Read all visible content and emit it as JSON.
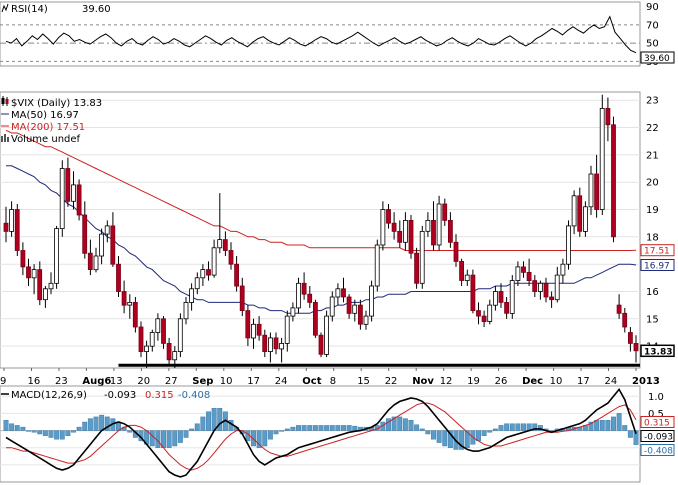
{
  "chart_data": [
    {
      "panel": "rsi",
      "type": "line",
      "title": "RSI(14)",
      "last_value_label": "39.60",
      "last_value": 39.6,
      "ylim": [
        25,
        95
      ],
      "y_ticks": [
        90,
        70,
        50,
        30
      ],
      "reference_lines": [
        70,
        50,
        30
      ],
      "values": [
        52,
        50,
        55,
        47,
        52,
        58,
        54,
        60,
        55,
        49,
        56,
        61,
        58,
        52,
        54,
        51,
        49,
        53,
        57,
        60,
        56,
        50,
        47,
        52,
        55,
        50,
        48,
        53,
        57,
        54,
        49,
        51,
        55,
        52,
        48,
        46,
        50,
        54,
        58,
        55,
        51,
        48,
        53,
        56,
        52,
        49,
        46,
        51,
        55,
        57,
        53,
        50,
        48,
        52,
        56,
        53,
        49,
        47,
        50,
        54,
        57,
        55,
        51,
        49,
        52,
        55,
        58,
        62,
        58,
        54,
        50,
        47,
        50,
        53,
        56,
        52,
        49,
        51,
        54,
        57,
        53,
        50,
        47,
        49,
        53,
        56,
        52,
        49,
        47,
        50,
        55,
        52,
        49,
        48,
        51,
        55,
        58,
        54,
        50,
        47,
        50,
        55,
        58,
        62,
        66,
        63,
        59,
        64,
        68,
        64,
        61,
        66,
        70,
        66,
        68,
        79,
        62,
        55,
        48,
        42,
        39.6
      ],
      "color": "#000000"
    },
    {
      "panel": "price",
      "type": "candlestick",
      "title": "$VIX (Daily) 13.83",
      "legend": [
        {
          "label": "$VIX (Daily) 13.83",
          "color": "#000000",
          "icon": "candle-icon"
        },
        {
          "label": "MA(50) 16.97",
          "color": "#1f2a7a"
        },
        {
          "label": "MA(200) 17.51",
          "color": "#cc2222"
        },
        {
          "label": "Volume undef",
          "color": "#555555",
          "icon": "volume-bars-icon"
        }
      ],
      "ylim": [
        13.2,
        23.3
      ],
      "y_ticks": [
        23,
        22,
        21,
        20,
        19,
        18,
        17,
        16,
        15,
        14
      ],
      "x_ticks": [
        "9",
        "16",
        "23",
        "Aug6",
        "13",
        "20",
        "27",
        "Sep",
        "10",
        "17",
        "24",
        "Oct",
        "8",
        "15",
        "22",
        "Nov",
        "12",
        "19",
        "26",
        "Dec",
        "10",
        "17",
        "24",
        "2013"
      ],
      "bold_x_ticks": [
        "Aug",
        "Sep",
        "Oct",
        "Nov",
        "Dec",
        "2013"
      ],
      "support_line": 13.3,
      "last_price": 13.83,
      "ma50_last": 16.97,
      "ma200_last": 17.51,
      "candles": [
        [
          18.5,
          19.1,
          17.8,
          18.2
        ],
        [
          18.2,
          19.3,
          18.0,
          19.0
        ],
        [
          19.0,
          19.2,
          17.3,
          17.5
        ],
        [
          17.5,
          17.8,
          16.6,
          16.9
        ],
        [
          16.9,
          17.2,
          16.2,
          16.5
        ],
        [
          16.5,
          17.0,
          15.9,
          16.8
        ],
        [
          16.8,
          17.1,
          15.5,
          15.7
        ],
        [
          15.7,
          16.2,
          15.4,
          16.1
        ],
        [
          16.1,
          16.7,
          15.9,
          16.3
        ],
        [
          16.3,
          18.4,
          16.1,
          18.3
        ],
        [
          18.3,
          20.8,
          18.0,
          20.5
        ],
        [
          20.5,
          20.9,
          19.1,
          19.3
        ],
        [
          19.3,
          20.4,
          19.0,
          19.9
        ],
        [
          19.9,
          20.1,
          18.6,
          18.8
        ],
        [
          18.8,
          19.3,
          17.2,
          17.4
        ],
        [
          17.4,
          17.9,
          16.6,
          16.8
        ],
        [
          16.8,
          17.6,
          16.7,
          17.3
        ],
        [
          17.3,
          18.3,
          17.0,
          18.1
        ],
        [
          18.1,
          18.6,
          17.8,
          18.4
        ],
        [
          18.4,
          18.9,
          16.9,
          17.0
        ],
        [
          17.0,
          17.3,
          15.8,
          16.0
        ],
        [
          16.0,
          16.4,
          15.2,
          15.5
        ],
        [
          15.5,
          15.9,
          15.0,
          15.6
        ],
        [
          15.6,
          15.8,
          14.5,
          14.7
        ],
        [
          14.7,
          14.9,
          13.6,
          13.8
        ],
        [
          13.8,
          14.2,
          13.2,
          14.0
        ],
        [
          14.0,
          14.6,
          13.8,
          14.5
        ],
        [
          14.5,
          15.2,
          14.2,
          15.0
        ],
        [
          15.0,
          15.1,
          13.9,
          14.1
        ],
        [
          14.1,
          14.3,
          13.3,
          13.5
        ],
        [
          13.5,
          14.0,
          13.2,
          13.8
        ],
        [
          13.8,
          15.2,
          13.6,
          15.0
        ],
        [
          15.0,
          15.8,
          14.8,
          15.6
        ],
        [
          15.6,
          16.3,
          15.3,
          16.1
        ],
        [
          16.1,
          16.7,
          15.9,
          16.5
        ],
        [
          16.5,
          17.0,
          16.2,
          16.8
        ],
        [
          16.8,
          17.1,
          16.4,
          16.6
        ],
        [
          16.6,
          17.9,
          16.5,
          17.6
        ],
        [
          17.6,
          19.6,
          17.4,
          17.9
        ],
        [
          17.9,
          18.2,
          17.3,
          17.5
        ],
        [
          17.5,
          17.8,
          16.8,
          17.0
        ],
        [
          17.0,
          17.3,
          16.0,
          16.2
        ],
        [
          16.2,
          16.5,
          15.1,
          15.3
        ],
        [
          15.3,
          15.5,
          14.0,
          14.3
        ],
        [
          14.3,
          15.0,
          13.9,
          14.8
        ],
        [
          14.8,
          15.1,
          14.2,
          14.4
        ],
        [
          14.4,
          14.6,
          13.6,
          13.8
        ],
        [
          13.8,
          14.5,
          13.4,
          14.3
        ],
        [
          14.3,
          14.5,
          13.7,
          13.9
        ],
        [
          13.9,
          14.3,
          13.4,
          14.1
        ],
        [
          14.1,
          15.3,
          13.8,
          15.1
        ],
        [
          15.1,
          15.6,
          14.9,
          15.4
        ],
        [
          15.4,
          16.5,
          15.2,
          16.3
        ],
        [
          16.3,
          16.7,
          15.7,
          15.9
        ],
        [
          15.9,
          16.2,
          15.4,
          15.6
        ],
        [
          15.6,
          15.7,
          14.3,
          14.4
        ],
        [
          14.4,
          14.5,
          13.6,
          13.7
        ],
        [
          13.7,
          15.3,
          13.6,
          15.1
        ],
        [
          15.1,
          16.0,
          14.9,
          15.8
        ],
        [
          15.8,
          16.3,
          15.5,
          16.1
        ],
        [
          16.1,
          16.5,
          15.6,
          15.8
        ],
        [
          15.8,
          15.9,
          15.0,
          15.2
        ],
        [
          15.2,
          15.7,
          14.9,
          15.5
        ],
        [
          15.5,
          15.7,
          14.6,
          14.8
        ],
        [
          14.8,
          15.3,
          14.6,
          15.1
        ],
        [
          15.1,
          16.4,
          14.9,
          16.2
        ],
        [
          16.2,
          17.9,
          16.0,
          17.7
        ],
        [
          17.7,
          19.3,
          17.5,
          19.0
        ],
        [
          19.0,
          19.2,
          18.3,
          18.5
        ],
        [
          18.5,
          18.9,
          17.9,
          18.2
        ],
        [
          18.2,
          18.6,
          17.6,
          17.8
        ],
        [
          17.8,
          18.9,
          17.5,
          18.6
        ],
        [
          18.6,
          18.8,
          17.2,
          17.4
        ],
        [
          17.4,
          17.6,
          16.1,
          16.3
        ],
        [
          16.3,
          18.4,
          16.1,
          18.2
        ],
        [
          18.2,
          18.9,
          18.0,
          18.6
        ],
        [
          18.6,
          19.3,
          17.5,
          17.7
        ],
        [
          17.7,
          19.5,
          17.5,
          19.2
        ],
        [
          19.2,
          19.4,
          18.4,
          18.6
        ],
        [
          18.6,
          18.9,
          17.6,
          17.8
        ],
        [
          17.8,
          18.1,
          16.9,
          17.1
        ],
        [
          17.1,
          17.2,
          16.2,
          16.4
        ],
        [
          16.4,
          16.8,
          16.2,
          16.6
        ],
        [
          16.6,
          16.8,
          15.2,
          15.3
        ],
        [
          15.3,
          15.6,
          14.8,
          15.1
        ],
        [
          15.1,
          15.3,
          14.7,
          14.9
        ],
        [
          14.9,
          15.7,
          14.8,
          15.5
        ],
        [
          15.5,
          16.2,
          15.3,
          16.0
        ],
        [
          16.0,
          16.3,
          15.4,
          15.6
        ],
        [
          15.6,
          15.8,
          15.0,
          15.2
        ],
        [
          15.2,
          16.6,
          15.0,
          16.4
        ],
        [
          16.4,
          17.1,
          16.2,
          16.9
        ],
        [
          16.9,
          17.1,
          16.5,
          16.7
        ],
        [
          16.7,
          17.2,
          16.2,
          16.4
        ],
        [
          16.4,
          16.6,
          15.8,
          16.0
        ],
        [
          16.0,
          16.4,
          15.7,
          16.3
        ],
        [
          16.3,
          16.5,
          15.6,
          15.8
        ],
        [
          15.8,
          16.0,
          15.4,
          15.7
        ],
        [
          15.7,
          16.9,
          15.6,
          16.6
        ],
        [
          16.6,
          17.2,
          16.3,
          17.0
        ],
        [
          17.0,
          18.6,
          16.8,
          18.4
        ],
        [
          18.4,
          19.7,
          18.1,
          19.5
        ],
        [
          19.5,
          19.8,
          18.0,
          18.2
        ],
        [
          18.2,
          19.3,
          18.0,
          19.1
        ],
        [
          19.1,
          20.6,
          18.8,
          20.3
        ],
        [
          20.3,
          21.0,
          18.7,
          19.0
        ],
        [
          19.0,
          23.2,
          18.8,
          22.7
        ],
        [
          22.7,
          23.1,
          21.5,
          22.1
        ],
        [
          22.1,
          22.4,
          17.8,
          18.0
        ],
        [
          15.5,
          15.9,
          15.0,
          15.2
        ],
        [
          15.2,
          15.4,
          14.5,
          14.7
        ],
        [
          14.5,
          14.7,
          13.8,
          14.1
        ],
        [
          14.1,
          14.4,
          13.4,
          13.83
        ]
      ],
      "ma50": [
        20.6,
        20.6,
        20.5,
        20.4,
        20.3,
        20.2,
        20.0,
        19.9,
        19.7,
        19.6,
        19.4,
        19.2,
        19.1,
        18.9,
        18.7,
        18.5,
        18.3,
        18.2,
        18.0,
        17.9,
        17.7,
        17.6,
        17.4,
        17.3,
        17.1,
        16.9,
        16.8,
        16.6,
        16.4,
        16.3,
        16.2,
        16.0,
        15.9,
        15.8,
        15.7,
        15.7,
        15.6,
        15.6,
        15.6,
        15.6,
        15.6,
        15.6,
        15.6,
        15.5,
        15.5,
        15.4,
        15.4,
        15.3,
        15.3,
        15.3,
        15.2,
        15.2,
        15.2,
        15.2,
        15.2,
        15.3,
        15.3,
        15.4,
        15.4,
        15.5,
        15.5,
        15.6,
        15.6,
        15.6,
        15.7,
        15.7,
        15.8,
        15.8,
        15.9,
        15.9,
        15.9,
        15.9,
        16.0,
        16.0,
        16.0,
        16.0,
        16.0,
        16.0,
        16.0,
        16.0,
        16.0,
        16.0,
        16.0,
        16.0,
        16.1,
        16.1,
        16.1,
        16.2,
        16.2,
        16.2,
        16.3,
        16.3,
        16.3,
        16.3,
        16.3,
        16.3,
        16.3,
        16.3,
        16.3,
        16.3,
        16.3,
        16.3,
        16.4,
        16.5,
        16.5,
        16.6,
        16.7,
        16.8,
        16.9,
        17.0,
        17.0,
        17.0,
        16.97
      ],
      "ma200": [
        21.9,
        21.8,
        21.8,
        21.7,
        21.6,
        21.5,
        21.4,
        21.3,
        21.3,
        21.2,
        21.1,
        21.0,
        20.9,
        20.8,
        20.7,
        20.6,
        20.5,
        20.4,
        20.3,
        20.2,
        20.1,
        20.0,
        19.9,
        19.8,
        19.7,
        19.6,
        19.5,
        19.4,
        19.3,
        19.2,
        19.1,
        19.0,
        18.9,
        18.8,
        18.7,
        18.6,
        18.5,
        18.4,
        18.4,
        18.3,
        18.2,
        18.2,
        18.1,
        18.0,
        18.0,
        17.9,
        17.9,
        17.8,
        17.8,
        17.8,
        17.7,
        17.7,
        17.7,
        17.7,
        17.6,
        17.6,
        17.6,
        17.6,
        17.6,
        17.6,
        17.6,
        17.6,
        17.6,
        17.6,
        17.6,
        17.6,
        17.6,
        17.6,
        17.6,
        17.6,
        17.6,
        17.5,
        17.5,
        17.5,
        17.5,
        17.5,
        17.5,
        17.5,
        17.5,
        17.5,
        17.5,
        17.5,
        17.5,
        17.5,
        17.5,
        17.5,
        17.5,
        17.5,
        17.5,
        17.5,
        17.5,
        17.5,
        17.5,
        17.5,
        17.5,
        17.5,
        17.5,
        17.5,
        17.5,
        17.5,
        17.5,
        17.5,
        17.5,
        17.5,
        17.5,
        17.5,
        17.5,
        17.5,
        17.5,
        17.5,
        17.5,
        17.5,
        17.51
      ]
    },
    {
      "panel": "macd",
      "type": "line",
      "title": "MACD(12,26,9)",
      "macd_label": "-0.093",
      "signal_label": "0.315",
      "histogram_label": "-0.408",
      "macd_color": "#000000",
      "signal_color": "#cc2222",
      "histogram_color": "#5b9bc8",
      "ylim": [
        -1.5,
        1.3
      ],
      "y_ticks": [
        1.0,
        0.5,
        -0.5
      ],
      "macd": [
        -0.2,
        -0.3,
        -0.4,
        -0.5,
        -0.6,
        -0.7,
        -0.8,
        -0.9,
        -1.0,
        -1.1,
        -1.15,
        -1.1,
        -1.0,
        -0.8,
        -0.6,
        -0.4,
        -0.2,
        0.0,
        0.1,
        0.2,
        0.25,
        0.2,
        0.1,
        -0.05,
        -0.2,
        -0.4,
        -0.6,
        -0.8,
        -1.0,
        -1.2,
        -1.3,
        -1.35,
        -1.3,
        -1.1,
        -0.9,
        -0.6,
        -0.3,
        0.0,
        0.2,
        0.3,
        0.2,
        0.1,
        -0.1,
        -0.4,
        -0.7,
        -0.9,
        -1.0,
        -0.9,
        -0.8,
        -0.75,
        -0.7,
        -0.6,
        -0.5,
        -0.45,
        -0.4,
        -0.35,
        -0.3,
        -0.25,
        -0.2,
        -0.15,
        -0.1,
        -0.05,
        -0.02,
        0.0,
        0.05,
        0.1,
        0.2,
        0.4,
        0.6,
        0.75,
        0.85,
        0.9,
        0.95,
        0.92,
        0.85,
        0.7,
        0.5,
        0.3,
        0.1,
        -0.1,
        -0.3,
        -0.45,
        -0.55,
        -0.6,
        -0.6,
        -0.55,
        -0.5,
        -0.4,
        -0.3,
        -0.2,
        -0.15,
        -0.1,
        -0.05,
        0.0,
        0.05,
        0.05,
        0.0,
        -0.05,
        0.0,
        0.05,
        0.1,
        0.15,
        0.2,
        0.3,
        0.45,
        0.6,
        0.7,
        0.8,
        1.0,
        1.2,
        0.9,
        0.4,
        -0.093
      ],
      "signal": [
        -0.5,
        -0.5,
        -0.55,
        -0.6,
        -0.6,
        -0.65,
        -0.7,
        -0.75,
        -0.8,
        -0.85,
        -0.9,
        -0.95,
        -0.95,
        -0.9,
        -0.85,
        -0.75,
        -0.6,
        -0.45,
        -0.3,
        -0.15,
        0.0,
        0.1,
        0.15,
        0.15,
        0.1,
        0.0,
        -0.15,
        -0.3,
        -0.5,
        -0.7,
        -0.85,
        -1.0,
        -1.1,
        -1.15,
        -1.1,
        -1.0,
        -0.85,
        -0.65,
        -0.45,
        -0.25,
        -0.1,
        0.0,
        0.0,
        -0.1,
        -0.25,
        -0.4,
        -0.55,
        -0.65,
        -0.7,
        -0.75,
        -0.75,
        -0.7,
        -0.65,
        -0.6,
        -0.55,
        -0.5,
        -0.45,
        -0.4,
        -0.35,
        -0.3,
        -0.25,
        -0.2,
        -0.15,
        -0.1,
        -0.05,
        0.0,
        0.05,
        0.15,
        0.25,
        0.35,
        0.45,
        0.55,
        0.65,
        0.75,
        0.8,
        0.8,
        0.75,
        0.65,
        0.55,
        0.4,
        0.25,
        0.1,
        -0.05,
        -0.2,
        -0.3,
        -0.4,
        -0.45,
        -0.45,
        -0.45,
        -0.4,
        -0.35,
        -0.3,
        -0.25,
        -0.2,
        -0.15,
        -0.1,
        -0.05,
        -0.05,
        -0.05,
        -0.02,
        0.0,
        0.05,
        0.1,
        0.15,
        0.2,
        0.3,
        0.4,
        0.5,
        0.6,
        0.7,
        0.75,
        0.6,
        0.315
      ]
    }
  ]
}
